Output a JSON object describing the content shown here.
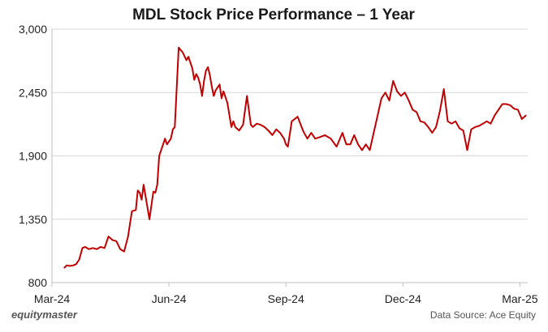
{
  "chart_data": {
    "type": "line",
    "title": "MDL Stock Price Performance – 1 Year",
    "xlabel": "",
    "ylabel": "",
    "ylim": [
      800,
      3000
    ],
    "yticks": [
      "800",
      "1,350",
      "1,900",
      "2,450",
      "3,000"
    ],
    "ytick_values": [
      800,
      1350,
      1900,
      2450,
      3000
    ],
    "xticks": [
      "Mar-24",
      "Jun-24",
      "Sep-24",
      "Dec-24",
      "Mar-25"
    ],
    "xtick_values": [
      0,
      3,
      6,
      9,
      12
    ],
    "grid": "horizontal",
    "series": [
      {
        "name": "MDL",
        "color": "#c00000",
        "x": [
          0.32,
          0.38,
          0.45,
          0.55,
          0.62,
          0.7,
          0.78,
          0.85,
          0.95,
          1.05,
          1.15,
          1.25,
          1.35,
          1.45,
          1.55,
          1.65,
          1.75,
          1.85,
          1.95,
          2.05,
          2.15,
          2.2,
          2.25,
          2.3,
          2.35,
          2.4,
          2.5,
          2.6,
          2.65,
          2.7,
          2.75,
          2.85,
          2.9,
          2.95,
          3.05,
          3.1,
          3.15,
          3.25,
          3.35,
          3.45,
          3.5,
          3.6,
          3.65,
          3.7,
          3.75,
          3.8,
          3.85,
          3.9,
          3.95,
          4.0,
          4.05,
          4.1,
          4.15,
          4.2,
          4.3,
          4.35,
          4.4,
          4.5,
          4.6,
          4.65,
          4.7,
          4.8,
          4.9,
          5.0,
          5.1,
          5.15,
          5.25,
          5.35,
          5.45,
          5.55,
          5.65,
          5.75,
          5.85,
          5.95,
          6.0,
          6.05,
          6.15,
          6.3,
          6.45,
          6.55,
          6.65,
          6.75,
          6.85,
          7.0,
          7.15,
          7.3,
          7.45,
          7.55,
          7.65,
          7.75,
          7.85,
          7.95,
          8.05,
          8.15,
          8.25,
          8.35,
          8.45,
          8.55,
          8.65,
          8.75,
          8.85,
          8.95,
          9.05,
          9.15,
          9.25,
          9.35,
          9.45,
          9.55,
          9.65,
          9.75,
          9.85,
          9.95,
          10.05,
          10.15,
          10.25,
          10.35,
          10.45,
          10.55,
          10.65,
          10.75,
          10.85,
          10.95,
          11.05,
          11.15,
          11.25,
          11.35,
          11.45,
          11.55,
          11.65,
          11.75,
          11.85,
          11.95,
          12.05,
          12.15
        ],
        "values": [
          930,
          950,
          945,
          950,
          960,
          1000,
          1100,
          1110,
          1090,
          1100,
          1090,
          1110,
          1100,
          1200,
          1170,
          1160,
          1090,
          1070,
          1200,
          1420,
          1430,
          1600,
          1580,
          1520,
          1650,
          1550,
          1350,
          1590,
          1580,
          1650,
          1900,
          2000,
          2050,
          2000,
          2050,
          2130,
          2150,
          2840,
          2800,
          2730,
          2760,
          2660,
          2560,
          2610,
          2580,
          2520,
          2420,
          2550,
          2640,
          2670,
          2600,
          2500,
          2420,
          2470,
          2520,
          2400,
          2460,
          2360,
          2150,
          2200,
          2150,
          2120,
          2170,
          2420,
          2170,
          2150,
          2180,
          2170,
          2150,
          2120,
          2080,
          2130,
          2100,
          2050,
          2000,
          1980,
          2200,
          2240,
          2110,
          2050,
          2100,
          2050,
          2060,
          2080,
          2050,
          1980,
          2100,
          2000,
          2000,
          2080,
          2000,
          1950,
          2000,
          1950,
          2100,
          2250,
          2400,
          2450,
          2380,
          2550,
          2460,
          2420,
          2450,
          2380,
          2300,
          2280,
          2200,
          2190,
          2150,
          2100,
          2150,
          2290,
          2480,
          2200,
          2180,
          2200,
          2140,
          2120,
          1950,
          2130,
          2150,
          2160,
          2180,
          2200,
          2180,
          2250,
          2300,
          2350,
          2350,
          2340,
          2310,
          2300,
          2220,
          2250
        ]
      }
    ]
  },
  "footer": {
    "brand": "equitymaster",
    "source": "Data Source: Ace Equity"
  }
}
